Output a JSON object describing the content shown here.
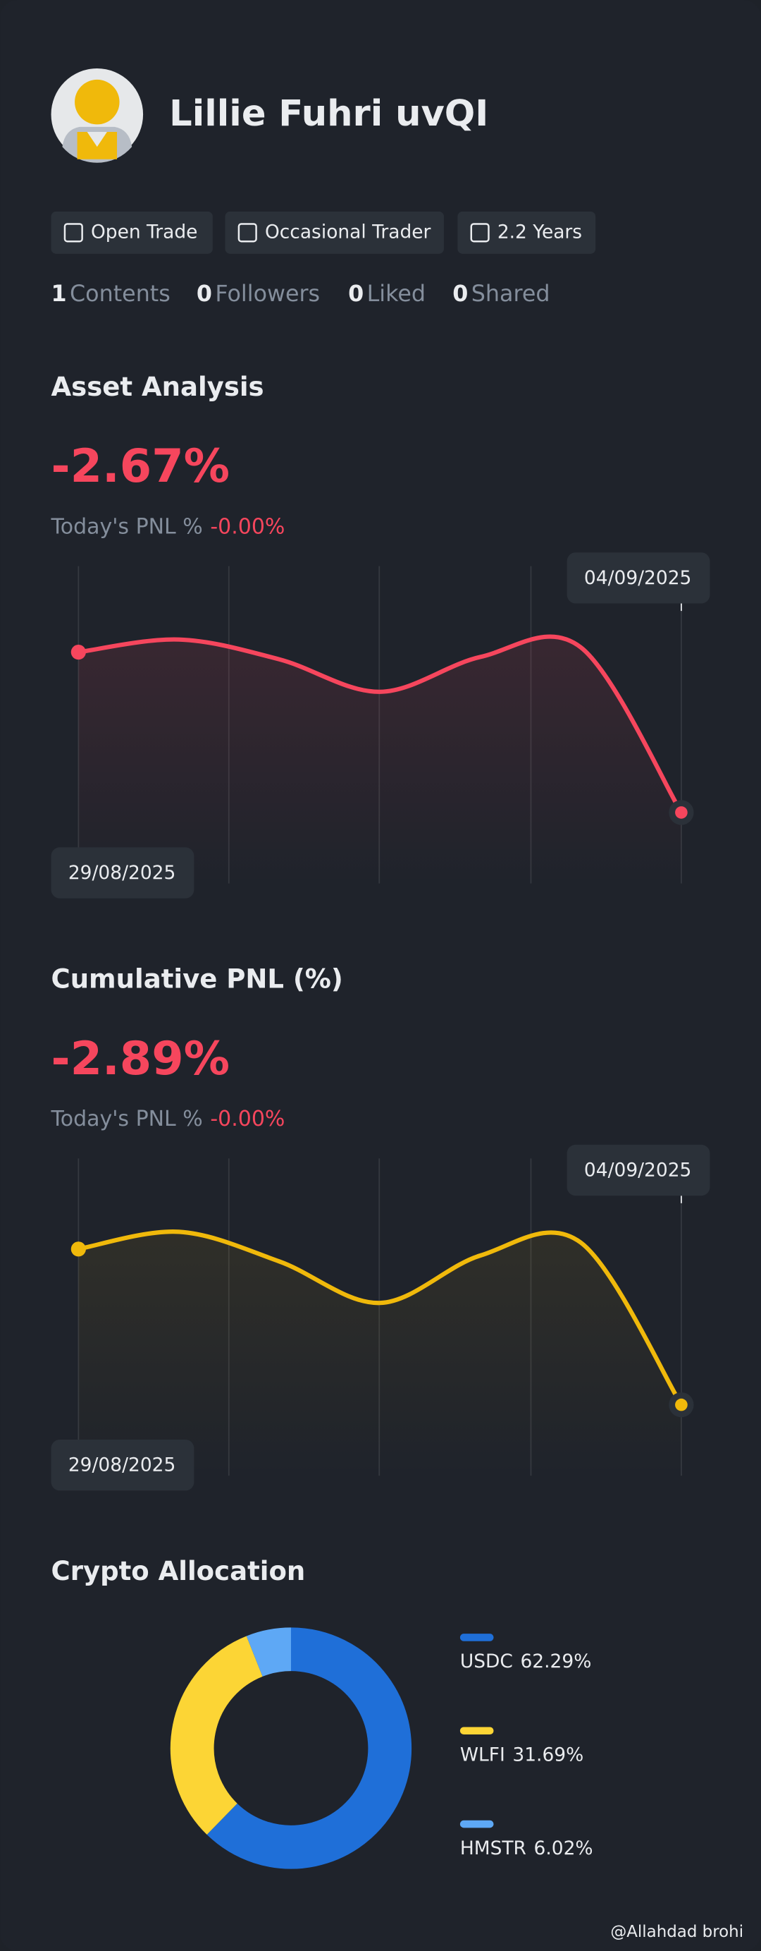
{
  "profile": {
    "name": "Lillie Fuhri uvQI",
    "tags": [
      "Open Trade",
      "Occasional Trader",
      "2.2 Years"
    ],
    "stats": [
      {
        "count": 1,
        "label": "Contents"
      },
      {
        "count": 0,
        "label": "Followers"
      },
      {
        "count": 0,
        "label": "Liked"
      },
      {
        "count": 0,
        "label": "Shared"
      }
    ]
  },
  "sections": [
    {
      "title": "Asset Analysis",
      "value": "-2.67%",
      "today_label": "Today's PNL %",
      "today_value": "-0.00%"
    },
    {
      "title": "Cumulative PNL (%)",
      "value": "-2.89%",
      "today_label": "Today's PNL %",
      "today_value": "-0.00%"
    },
    {
      "title": "Crypto Allocation"
    }
  ],
  "watermark": "@Allahdad brohi",
  "chart_data": [
    {
      "type": "line",
      "color": "#f6465d",
      "categories": [
        "29/08/2025",
        null,
        null,
        null,
        null,
        null,
        "04/09/2025"
      ],
      "values": [
        0,
        0.21,
        -0.12,
        -0.66,
        -0.08,
        0.08,
        -2.67
      ]
    },
    {
      "type": "line",
      "color": "#f0b90b",
      "categories": [
        "29/08/2025",
        null,
        null,
        null,
        null,
        null,
        "04/09/2025"
      ],
      "values": [
        0,
        0.32,
        -0.23,
        -1.0,
        -0.12,
        0.12,
        -2.89
      ]
    },
    {
      "type": "pie",
      "categories": [
        "USDC",
        "WLFI",
        "HMSTR"
      ],
      "values": [
        62.29,
        31.69,
        6.02
      ],
      "value_labels": [
        "62.29%",
        "31.69%",
        "6.02%"
      ],
      "colors": [
        "#1f6fd8",
        "#fcd535",
        "#5ea8f5"
      ]
    }
  ]
}
